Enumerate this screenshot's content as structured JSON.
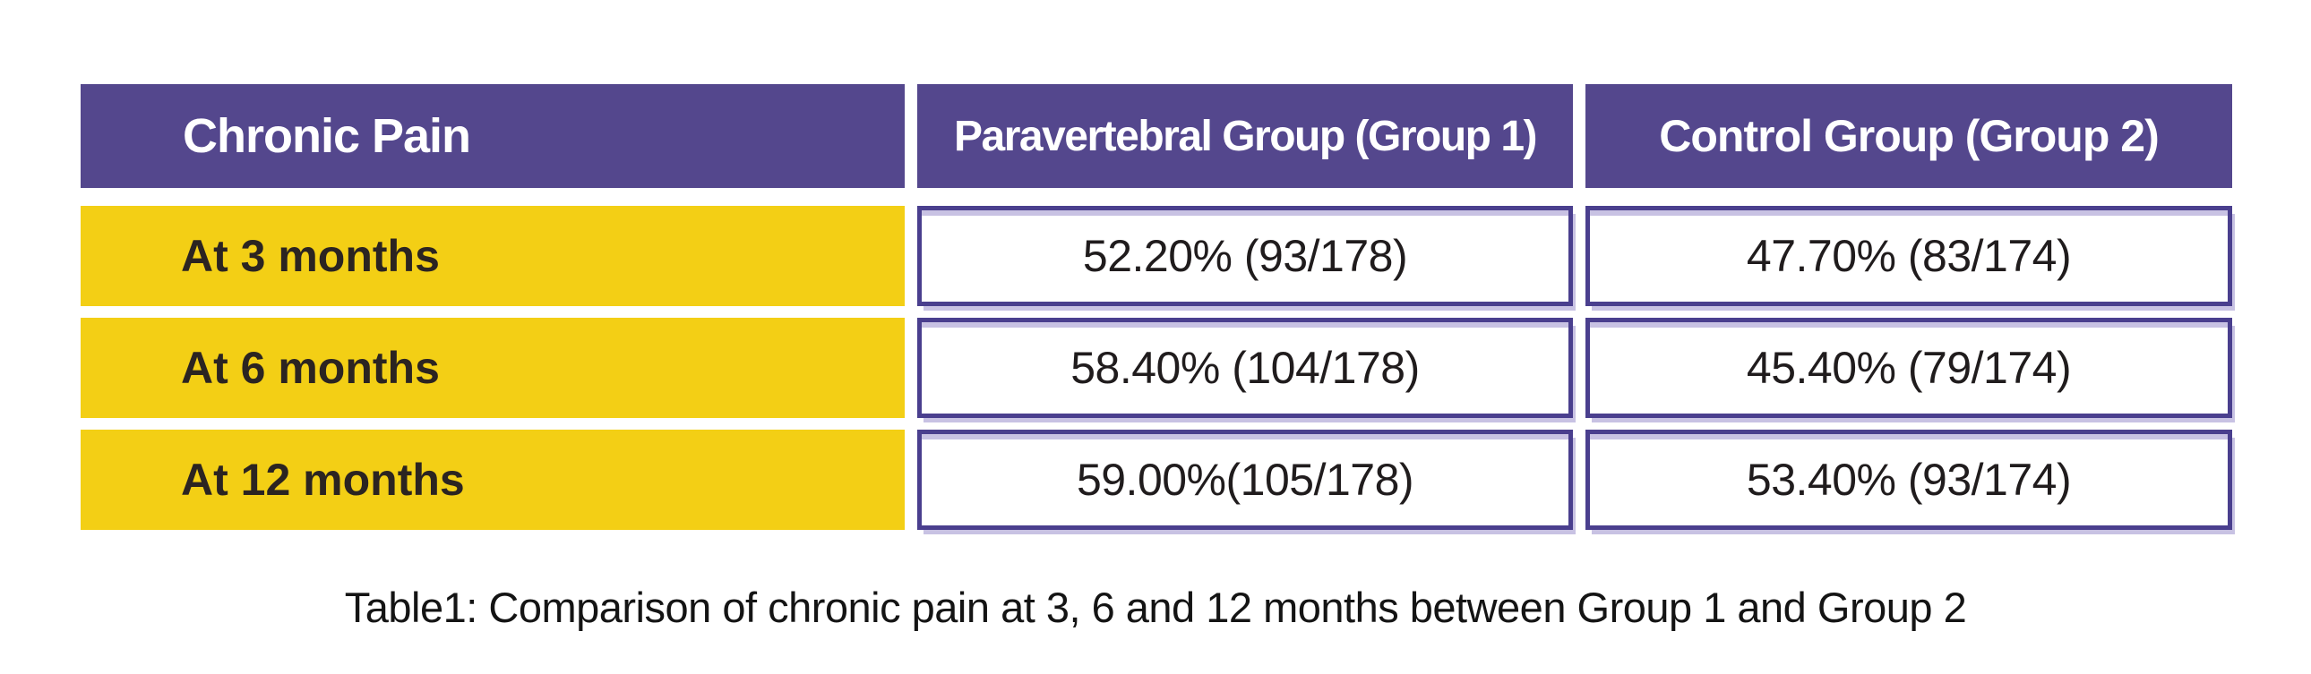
{
  "table": {
    "header": {
      "col1": "Chronic Pain",
      "col2": "Paravertebral Group (Group 1)",
      "col3": "Control Group (Group 2)"
    },
    "rows": [
      {
        "label": "At 3 months",
        "group1": "52.20% (93/178)",
        "group2": "47.70% (83/174)"
      },
      {
        "label": "At 6 months",
        "group1": "58.40% (104/178)",
        "group2": "45.40% (79/174)"
      },
      {
        "label": "At 12 months",
        "group1": "59.00%(105/178)",
        "group2": "53.40% (93/174)"
      }
    ]
  },
  "caption": "Table1: Comparison of chronic pain at 3, 6 and 12 months between Group 1 and Group 2",
  "colors": {
    "header_purple": "#54478d",
    "cell_border_purple": "#4a3f8e",
    "shadow_lavender": "#c8c2e3",
    "label_yellow": "#f3cf15",
    "header_text": "#ffffff",
    "body_text": "#201c1d",
    "background": "#ffffff"
  },
  "chart_data": {
    "type": "table",
    "title": "Table1: Comparison of chronic pain at 3, 6 and 12 months between Group 1 and Group 2",
    "columns": [
      "Chronic Pain",
      "Paravertebral Group (Group 1)",
      "Control Group (Group 2)"
    ],
    "categories": [
      "At 3 months",
      "At 6 months",
      "At 12 months"
    ],
    "rows": [
      [
        "At 3 months",
        "52.20% (93/178)",
        "47.70% (83/174)"
      ],
      [
        "At 6 months",
        "58.40% (104/178)",
        "45.40% (79/174)"
      ],
      [
        "At 12 months",
        "59.00%(105/178)",
        "53.40% (93/174)"
      ]
    ],
    "series": [
      {
        "name": "Paravertebral Group (Group 1)",
        "values_percent": [
          52.2,
          58.4,
          59.0
        ],
        "counts": [
          "93/178",
          "104/178",
          "105/178"
        ]
      },
      {
        "name": "Control Group (Group 2)",
        "values_percent": [
          47.7,
          45.4,
          53.4
        ],
        "counts": [
          "83/174",
          "79/174",
          "93/174"
        ]
      }
    ]
  }
}
